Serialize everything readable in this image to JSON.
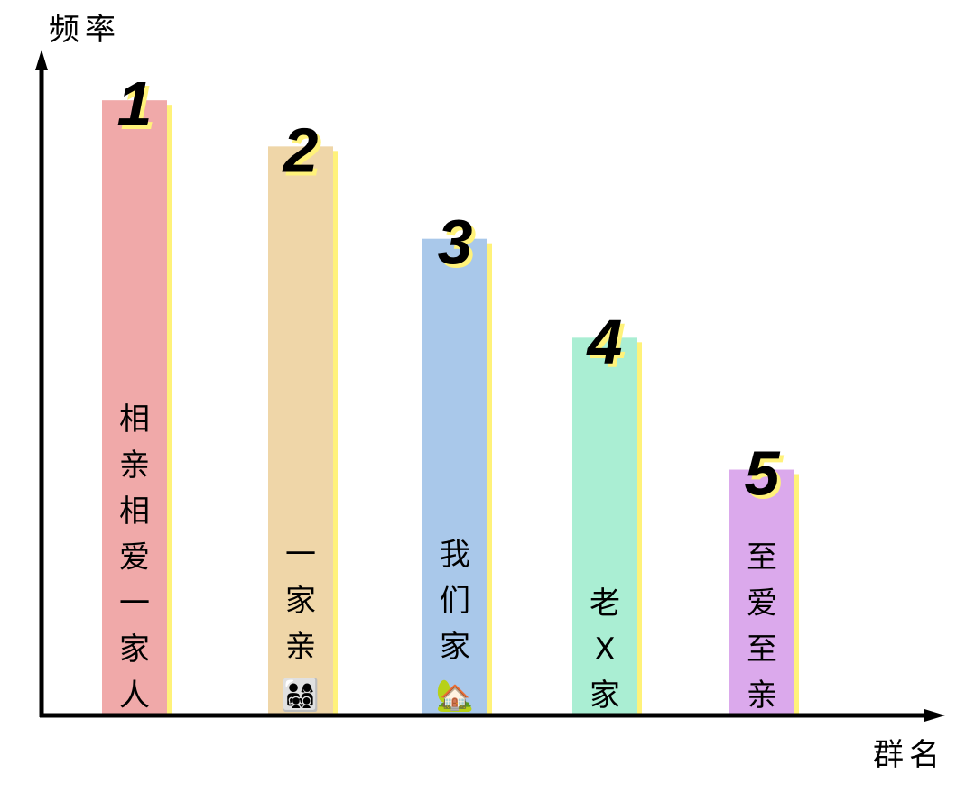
{
  "chart_data": {
    "type": "bar",
    "xlabel": "群名",
    "ylabel": "频率",
    "ylim": [
      0,
      1
    ],
    "grid": false,
    "legend": "none",
    "categories": [
      "相亲相爱一家人",
      "一家亲",
      "我们家",
      "老X家",
      "至爱至亲"
    ],
    "emojis": [
      "",
      "👨‍👩‍👧‍👦",
      "🏡",
      "",
      ""
    ],
    "ranks": [
      "1",
      "2",
      "3",
      "4",
      "5"
    ],
    "values": [
      0.93,
      0.86,
      0.72,
      0.57,
      0.37
    ],
    "colors": [
      "#f0a9a9",
      "#efd6a8",
      "#a9c8ea",
      "#aaeed3",
      "#dba9ec"
    ],
    "shadow_color": "#fff27a",
    "axis_color": "#000000"
  }
}
